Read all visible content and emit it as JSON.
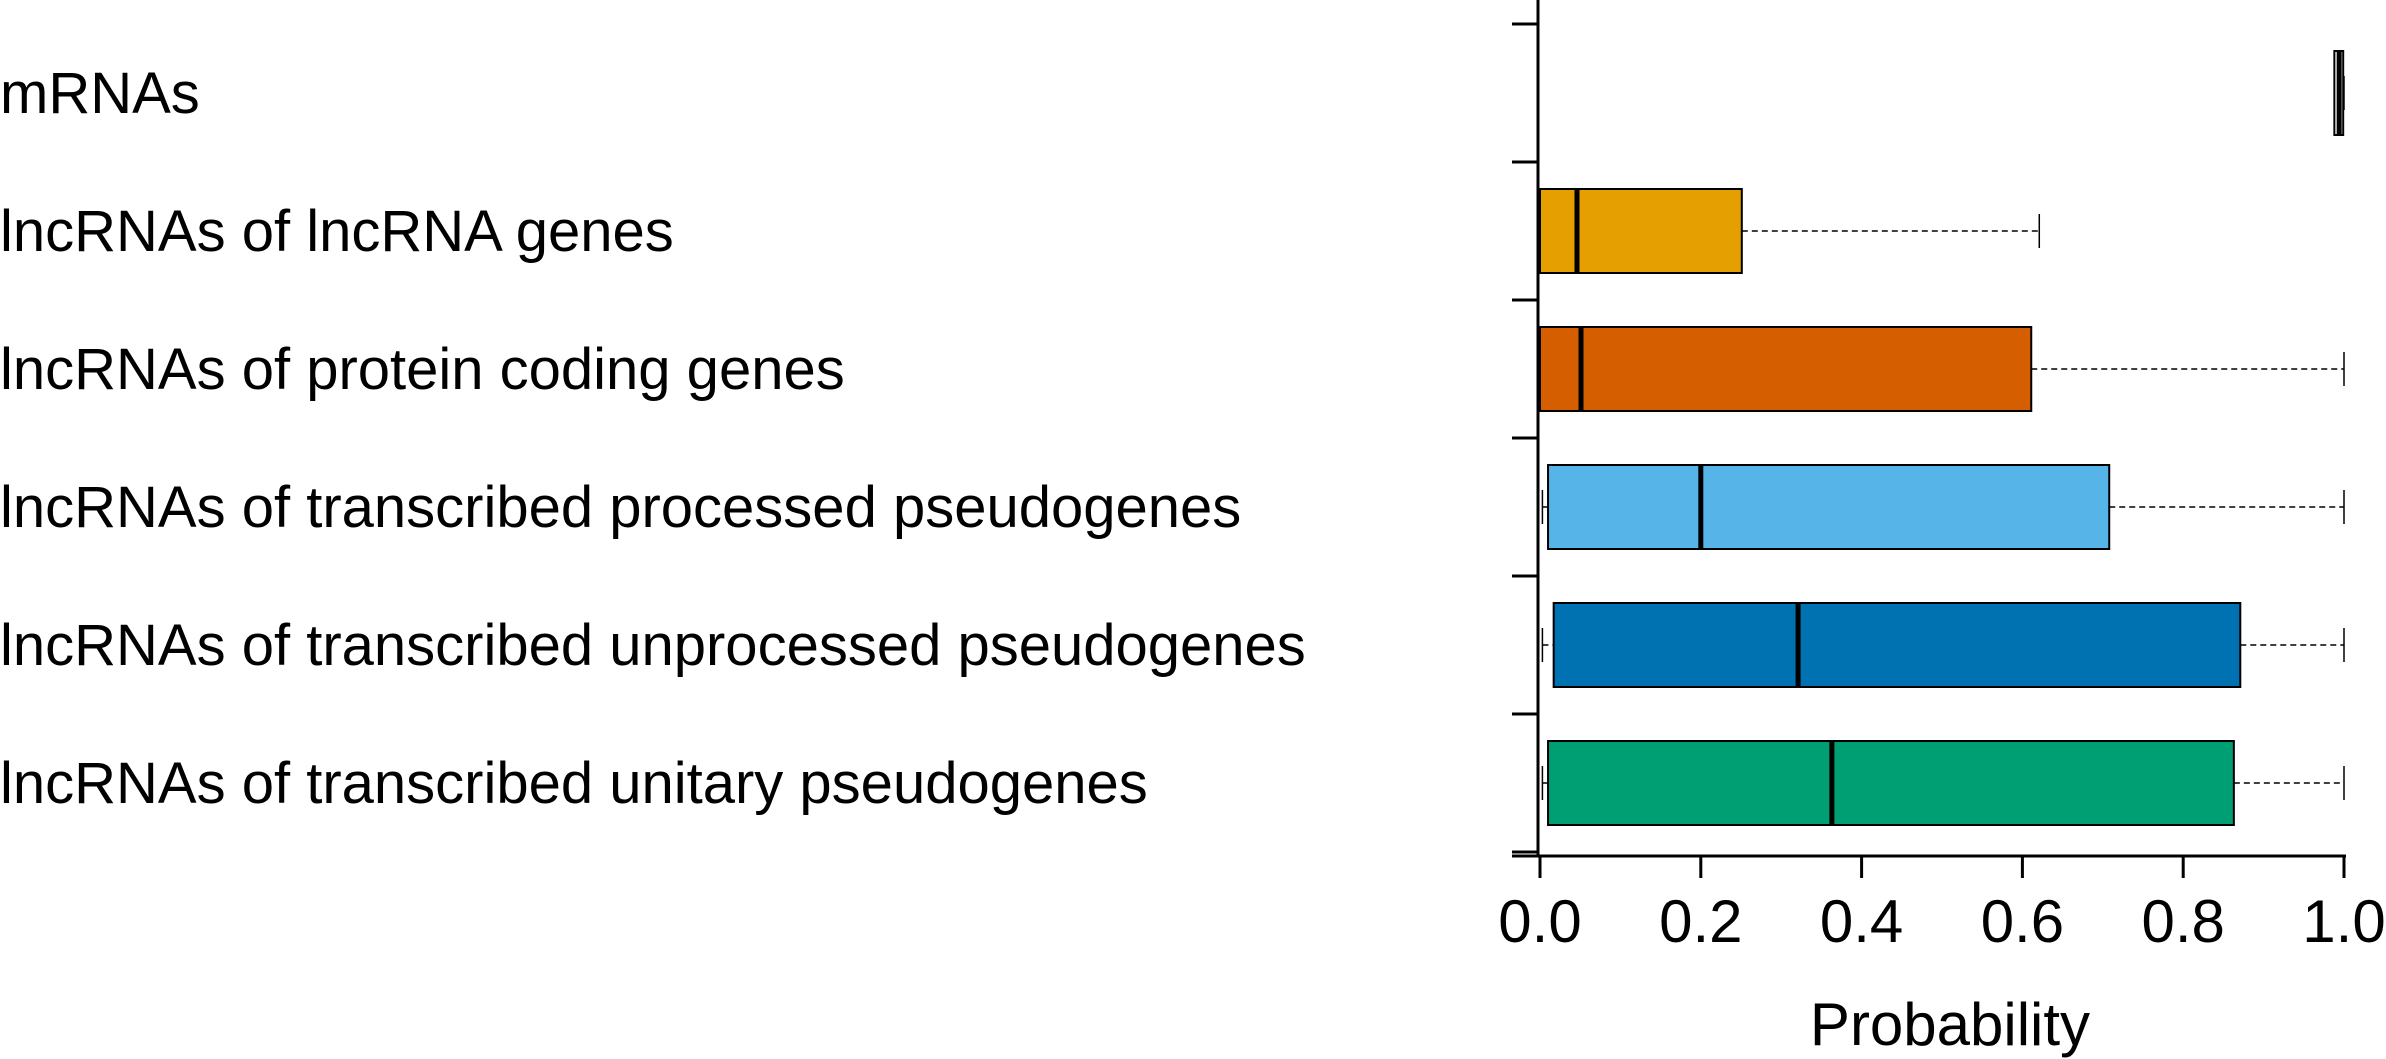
{
  "chart_data": {
    "type": "boxplot",
    "orientation": "horizontal",
    "xlabel": "Probability",
    "xlim": [
      0,
      1
    ],
    "x_ticks": [
      "0.0",
      "0.2",
      "0.4",
      "0.6",
      "0.8",
      "1.0"
    ],
    "x_tick_values": [
      0,
      0.2,
      0.4,
      0.6,
      0.8,
      1.0
    ],
    "categories": [
      {
        "label": "mRNAs",
        "color": "#ffffff",
        "min": 0.988,
        "q1": 0.988,
        "median": 0.994,
        "q3": 0.999,
        "max": 1.0
      },
      {
        "label": "lncRNAs of lncRNA genes",
        "color": "#E69F00",
        "min": 0.0,
        "q1": 0.0,
        "median": 0.046,
        "q3": 0.251,
        "max": 0.621
      },
      {
        "label": "lncRNAs of protein coding genes",
        "color": "#D55E00",
        "min": 0.0,
        "q1": 0.0,
        "median": 0.051,
        "q3": 0.611,
        "max": 1.0
      },
      {
        "label": "lncRNAs of transcribed processed pseudogenes",
        "color": "#56B4E9",
        "min": 0.003,
        "q1": 0.01,
        "median": 0.2,
        "q3": 0.708,
        "max": 1.0
      },
      {
        "label": "lncRNAs of transcribed unprocessed pseudogenes",
        "color": "#0072B2",
        "min": 0.003,
        "q1": 0.017,
        "median": 0.321,
        "q3": 0.871,
        "max": 1.0
      },
      {
        "label": "lncRNAs of transcribed unitary pseudogenes",
        "color": "#009E73",
        "min": 0.003,
        "q1": 0.01,
        "median": 0.363,
        "q3": 0.863,
        "max": 1.0
      }
    ],
    "grid": false,
    "legend": "none"
  }
}
